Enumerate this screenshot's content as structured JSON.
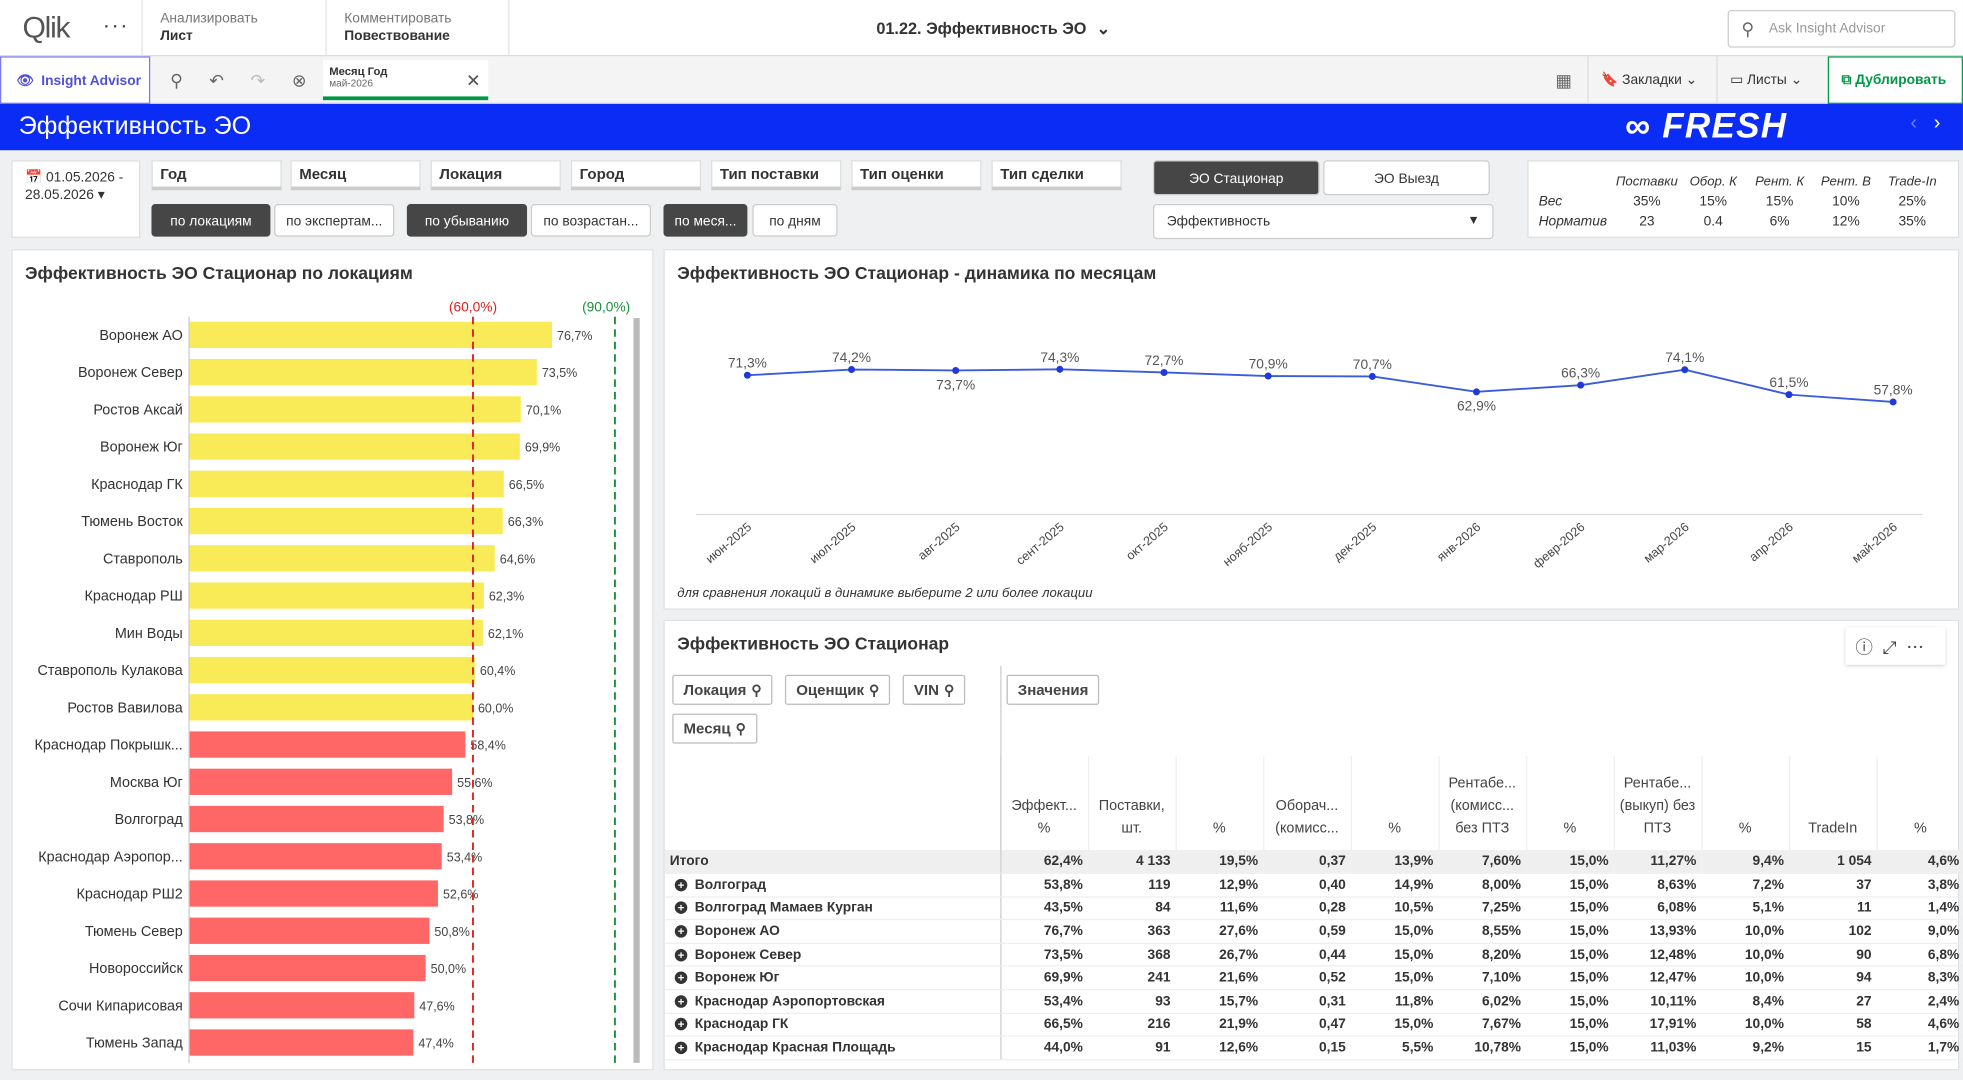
{
  "topbar": {
    "logo": "Qlik",
    "menu_dots": "···",
    "tabs": [
      {
        "small": "Анализировать",
        "big": "Лист"
      },
      {
        "small": "Комментировать",
        "big": "Повествование"
      }
    ],
    "app_title": "01.22. Эффективность ЭО",
    "ask_placeholder": "Ask Insight Advisor"
  },
  "toolbar": {
    "insight_advisor": "Insight Advisor",
    "selection_field": "Месяц Год",
    "selection_value": "май-2026",
    "bookmarks": "Закладки",
    "sheets": "Листы",
    "duplicate": "Дублировать"
  },
  "header": {
    "title": "Эффективность ЭО",
    "brand": "FRESH"
  },
  "filters": {
    "date_range": "01.05.2026 - 28.05.2026",
    "fields": [
      "Год",
      "Месяц",
      "Локация",
      "Город",
      "Тип поставки",
      "Тип оценки",
      "Тип сделки"
    ],
    "toggles": [
      "по локациям",
      "по экспертам...",
      "по убыванию",
      "по возрастан...",
      "по меся...",
      "по дням"
    ],
    "eo_stationary": "ЭО Стационар",
    "eo_visit": "ЭО Выезд",
    "measure": "Эффективность"
  },
  "weights": {
    "headers": [
      "Поставки",
      "Обор. К",
      "Рент. К",
      "Рент. В",
      "Trade-In"
    ],
    "rows": [
      {
        "label": "Вес",
        "values": [
          "35%",
          "15%",
          "15%",
          "10%",
          "25%"
        ]
      },
      {
        "label": "Норматив",
        "values": [
          "23",
          "0.4",
          "6%",
          "12%",
          "35%"
        ]
      }
    ]
  },
  "bar_chart": {
    "title": "Эффективность ЭО Стационар по локациям",
    "ref_low_label": "(60,0%)",
    "ref_high_label": "(90,0%)",
    "colors": {
      "above": "#f9ea57",
      "below": "#ff6666",
      "ref_low": "#e02020",
      "ref_high": "#1a8f3a"
    }
  },
  "chart_data": [
    {
      "type": "bar",
      "orientation": "horizontal",
      "categories": [
        "Воронеж АО",
        "Воронеж Север",
        "Ростов Аксай",
        "Воронеж Юг",
        "Краснодар ГК",
        "Тюмень Восток",
        "Ставрополь",
        "Краснодар РШ",
        "Мин Воды",
        "Ставрополь Кулакова",
        "Ростов Вавилова",
        "Краснодар Покрышк...",
        "Москва Юг",
        "Волгоград",
        "Краснодар Аэропор...",
        "Краснодар РШ2",
        "Тюмень Север",
        "Новороссийск",
        "Сочи Кипарисовая",
        "Тюмень Запад"
      ],
      "values": [
        76.7,
        73.5,
        70.1,
        69.9,
        66.5,
        66.3,
        64.6,
        62.3,
        62.1,
        60.4,
        60.0,
        58.4,
        55.6,
        53.8,
        53.4,
        52.6,
        50.8,
        50.0,
        47.6,
        47.4
      ],
      "labels": [
        "76,7%",
        "73,5%",
        "70,1%",
        "69,9%",
        "66,5%",
        "66,3%",
        "64,6%",
        "62,3%",
        "62,1%",
        "60,4%",
        "60,0%",
        "58,4%",
        "55,6%",
        "53,8%",
        "53,4%",
        "52,6%",
        "50,8%",
        "50,0%",
        "47,6%",
        "47,4%"
      ],
      "reference_lines": [
        60,
        90
      ],
      "xlim": [
        0,
        100
      ],
      "title": "Эффективность ЭО Стационар по локациям"
    },
    {
      "type": "line",
      "title": "Эффективность ЭО Стационар - динамика по месяцам",
      "x": [
        "июн-2025",
        "июл-2025",
        "авг-2025",
        "сент-2025",
        "окт-2025",
        "нояб-2025",
        "дек-2025",
        "янв-2026",
        "февр-2026",
        "мар-2026",
        "апр-2026",
        "май-2026"
      ],
      "values": [
        71.3,
        74.2,
        73.7,
        74.3,
        72.7,
        70.9,
        70.7,
        62.9,
        66.3,
        74.1,
        61.5,
        57.8
      ],
      "labels": [
        "71,3%",
        "74,2%",
        "73,7%",
        "74,3%",
        "72,7%",
        "70,9%",
        "70,7%",
        "62,9%",
        "66,3%",
        "74,1%",
        "61,5%",
        "57,8%"
      ],
      "ylim": [
        0,
        80
      ],
      "color": "#3b5bdb",
      "note": "для сравнения локаций в динамике выберите 2 или более локации"
    }
  ],
  "table": {
    "title": "Эффективность ЭО Стационар",
    "dimension_chips": [
      "Локация",
      "Оценщик",
      "VIN",
      "Месяц"
    ],
    "values_chip": "Значения",
    "columns": [
      "Эффект... %",
      "Поставки, шт.",
      "%",
      "Оборач... (комисс...",
      "%",
      "Рентабе... (комисс... без ПТЗ",
      "%",
      "Рентабе... (выкуп) без ПТЗ",
      "%",
      "TradeIn",
      "%"
    ],
    "total": {
      "name": "Итого",
      "cells": [
        "62,4%",
        "4 133",
        "19,5%",
        "0,37",
        "13,9%",
        "7,60%",
        "15,0%",
        "11,27%",
        "9,4%",
        "1 054",
        "4,6%"
      ]
    },
    "rows": [
      {
        "name": "Волгоград",
        "cells": [
          "53,8%",
          "119",
          "12,9%",
          "0,40",
          "14,9%",
          "8,00%",
          "15,0%",
          "8,63%",
          "7,2%",
          "37",
          "3,8%"
        ]
      },
      {
        "name": "Волгоград Мамаев Курган",
        "cells": [
          "43,5%",
          "84",
          "11,6%",
          "0,28",
          "10,5%",
          "7,25%",
          "15,0%",
          "6,08%",
          "5,1%",
          "11",
          "1,4%"
        ]
      },
      {
        "name": "Воронеж АО",
        "cells": [
          "76,7%",
          "363",
          "27,6%",
          "0,59",
          "15,0%",
          "8,55%",
          "15,0%",
          "13,93%",
          "10,0%",
          "102",
          "9,0%"
        ]
      },
      {
        "name": "Воронеж Север",
        "cells": [
          "73,5%",
          "368",
          "26,7%",
          "0,44",
          "15,0%",
          "8,20%",
          "15,0%",
          "12,48%",
          "10,0%",
          "90",
          "6,8%"
        ]
      },
      {
        "name": "Воронеж Юг",
        "cells": [
          "69,9%",
          "241",
          "21,6%",
          "0,52",
          "15,0%",
          "7,10%",
          "15,0%",
          "12,47%",
          "10,0%",
          "94",
          "8,3%"
        ]
      },
      {
        "name": "Краснодар Аэропортовская",
        "cells": [
          "53,4%",
          "93",
          "15,7%",
          "0,31",
          "11,8%",
          "6,02%",
          "15,0%",
          "10,11%",
          "8,4%",
          "27",
          "2,4%"
        ]
      },
      {
        "name": "Краснодар ГК",
        "cells": [
          "66,5%",
          "216",
          "21,9%",
          "0,47",
          "15,0%",
          "7,67%",
          "15,0%",
          "17,91%",
          "10,0%",
          "58",
          "4,6%"
        ]
      },
      {
        "name": "Краснодар Красная Площадь",
        "cells": [
          "44,0%",
          "91",
          "12,6%",
          "0,15",
          "5,5%",
          "10,78%",
          "15,0%",
          "11,03%",
          "9,2%",
          "15",
          "1,7%"
        ]
      }
    ]
  }
}
